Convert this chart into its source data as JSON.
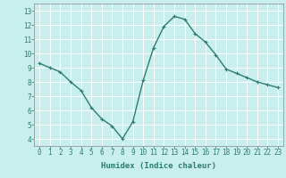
{
  "x": [
    0,
    1,
    2,
    3,
    4,
    5,
    6,
    7,
    8,
    9,
    10,
    11,
    12,
    13,
    14,
    15,
    16,
    17,
    18,
    19,
    20,
    21,
    22,
    23
  ],
  "y": [
    9.3,
    9.0,
    8.7,
    8.0,
    7.4,
    6.2,
    5.4,
    4.9,
    4.0,
    5.2,
    8.1,
    10.4,
    11.9,
    12.6,
    12.4,
    11.4,
    10.8,
    9.9,
    8.9,
    8.6,
    8.3,
    8.0,
    7.8,
    7.6
  ],
  "line_color": "#2e7d6e",
  "marker": "+",
  "bg_color": "#c8eeee",
  "grid_color": "#ffffff",
  "xlabel": "Humidex (Indice chaleur)",
  "xlim": [
    -0.5,
    23.5
  ],
  "ylim": [
    3.5,
    13.5
  ],
  "yticks": [
    4,
    5,
    6,
    7,
    8,
    9,
    10,
    11,
    12,
    13
  ],
  "xticks": [
    0,
    1,
    2,
    3,
    4,
    5,
    6,
    7,
    8,
    9,
    10,
    11,
    12,
    13,
    14,
    15,
    16,
    17,
    18,
    19,
    20,
    21,
    22,
    23
  ],
  "tick_color": "#2e7d6e",
  "label_fontsize": 6.5,
  "tick_fontsize": 5.5,
  "linewidth": 1.0,
  "markersize": 3.5,
  "markeredgewidth": 0.8
}
